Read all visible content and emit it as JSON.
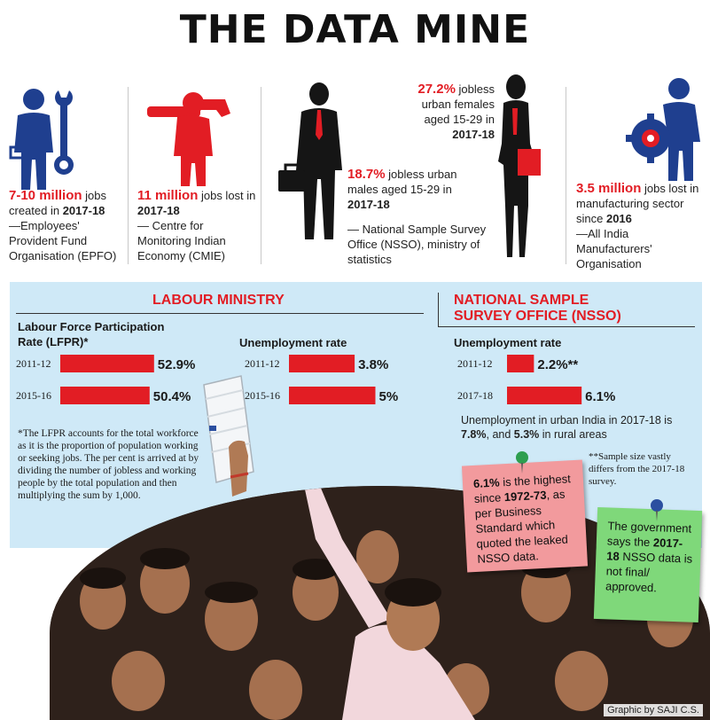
{
  "title": "THE DATA MINE",
  "stats": {
    "epfo": {
      "figure": "7-10 million",
      "rest": " jobs created in ",
      "year": "2017-18",
      "source": "—Employees' Provident Fund Organisation (EPFO)"
    },
    "cmie": {
      "figure": "11 million",
      "rest": " jobs lost in ",
      "year": "2017-18",
      "source": "— Centre for Monitoring Indian Economy (CMIE)"
    },
    "females": {
      "figure": "27.2%",
      "rest": " jobless urban females aged 15-29 in ",
      "year": "2017-18"
    },
    "males": {
      "figure": "18.7%",
      "rest": " jobless urban males aged 15-29 in ",
      "year": "2017-18"
    },
    "nsso_source": "— National Sample Survey Office (NSSO), ministry of statistics",
    "aimo": {
      "figure": "3.5 million",
      "rest": " jobs lost in manufacturing sector since ",
      "year": "2016",
      "source": "—All India Manufacturers' Organisation"
    }
  },
  "labour": {
    "title": "LABOUR MINISTRY",
    "lfpr_label": "Labour Force Participation Rate (LFPR)*",
    "unemp_label": "Unemployment rate",
    "footnote": "*The LFPR accounts for the total workforce as it is the proportion of population working or seeking jobs. The per cent is arrived at by dividing the number of jobless and working people by the total population and then multiplying the sum by 1,000."
  },
  "nsso": {
    "title_line1": "NATIONAL SAMPLE",
    "title_line2": "SURVEY OFFICE (NSSO)",
    "unemp_label": "Unemployment rate",
    "sample_note": "**Sample size vastly differs from the 2017-18 survey.",
    "urban_note_text": "Unemployment in urban India in 2017-18 is ",
    "urban_value": "7.8%",
    "urban_mid": ", and ",
    "rural_value": "5.3%",
    "rural_end": " in rural areas"
  },
  "chart_data": [
    {
      "type": "bar",
      "title": "Labour Force Participation Rate (LFPR)*",
      "categories": [
        "2011-12",
        "2015-16"
      ],
      "values": [
        52.9,
        50.4
      ],
      "value_labels": [
        "52.9%",
        "50.4%"
      ],
      "color": "#e21d24"
    },
    {
      "type": "bar",
      "title": "Unemployment rate",
      "categories": [
        "2011-12",
        "2015-16"
      ],
      "values": [
        3.8,
        5.0
      ],
      "value_labels": [
        "3.8%",
        "5%"
      ],
      "color": "#e21d24"
    },
    {
      "type": "bar",
      "title": "Unemployment rate",
      "categories": [
        "2011-12",
        "2017-18"
      ],
      "values": [
        2.2,
        6.1
      ],
      "value_labels": [
        "2.2%**",
        "6.1%"
      ],
      "color": "#e21d24"
    }
  ],
  "notes": {
    "pink": {
      "t1": "6.1%",
      "t2": " is the highest since ",
      "t3": "1972-73",
      "t4": ", as per Business Standard which quoted the leaked NSSO data.",
      "color": "#f29a9d"
    },
    "green": {
      "t1": "The government says the ",
      "t2": "2017-18",
      "t3": " NSSO data is not final/ approved.",
      "color": "#7fd87a"
    }
  },
  "credit": "Graphic by SAJI C.S.",
  "colors": {
    "accent_red": "#e21d24",
    "icon_blue": "#1f3f8f",
    "panel_bg": "#cfe9f7"
  }
}
